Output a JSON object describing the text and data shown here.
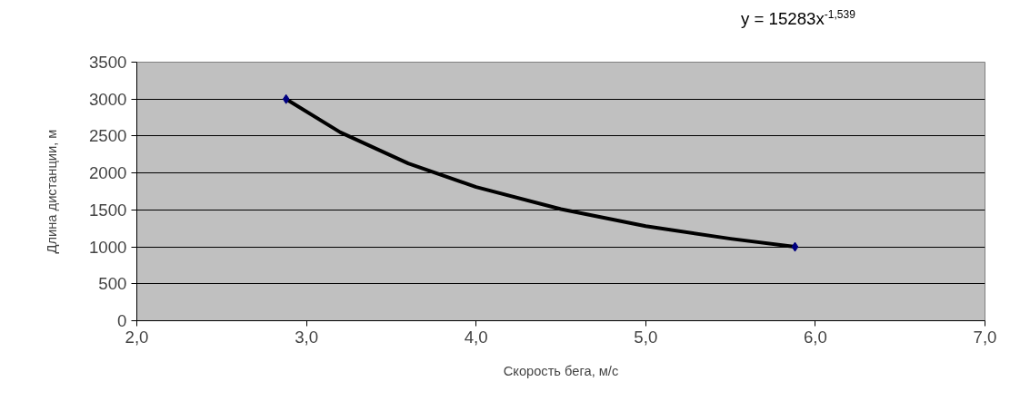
{
  "chart_data": {
    "type": "scatter",
    "xlabel": "Скорость бега, м/с",
    "ylabel": "Длина дистанции, м",
    "annotations": [
      "y = 15283x$^{-1,539}$"
    ],
    "series": [
      {
        "type": "line",
        "color": "#000000",
        "x": [
          2.88,
          3.2,
          3.6,
          4.0,
          4.5,
          5.0,
          5.5,
          5.88
        ],
        "values": [
          3000,
          2550,
          2130,
          1810,
          1510,
          1280,
          1110,
          1000
        ],
        "marker": "none"
      },
      {
        "color": "#000080",
        "x": [
          2.88,
          5.88
        ],
        "values": [
          3000,
          1000
        ],
        "marker": "diamond"
      }
    ],
    "xlim": [
      2,
      7
    ],
    "xticks": [
      {
        "value": 2,
        "label": "2,0"
      },
      {
        "value": 3,
        "label": "3,0"
      },
      {
        "value": 4,
        "label": "4,0"
      },
      {
        "value": 5,
        "label": "5,0"
      },
      {
        "value": 6,
        "label": "6,0"
      },
      {
        "value": 7,
        "label": "7,0"
      }
    ],
    "ylim": [
      0,
      3500
    ],
    "yticks": [
      0,
      500,
      1000,
      1500,
      2000,
      2500,
      3000,
      3500
    ],
    "grid": "y"
  }
}
